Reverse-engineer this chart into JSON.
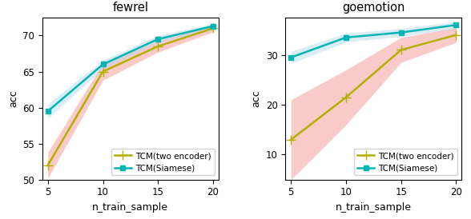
{
  "x": [
    5,
    10,
    15,
    20
  ],
  "fewrel": {
    "two_encoder_mean": [
      52.0,
      65.0,
      68.5,
      71.0
    ],
    "two_encoder_std": [
      1.8,
      1.2,
      0.8,
      0.5
    ],
    "siamese_mean": [
      59.5,
      66.0,
      69.5,
      71.3
    ],
    "siamese_std": [
      1.0,
      0.6,
      0.5,
      0.4
    ]
  },
  "goemotion": {
    "two_encoder_mean": [
      13.0,
      21.5,
      31.0,
      34.0
    ],
    "two_encoder_std": [
      8.0,
      5.5,
      2.5,
      1.5
    ],
    "siamese_mean": [
      29.5,
      33.5,
      34.5,
      36.0
    ],
    "siamese_std": [
      1.2,
      0.9,
      0.8,
      0.7
    ]
  },
  "color_two_encoder": "#b5b000",
  "color_siamese": "#00b5b5",
  "fill_color_two_encoder": "#f4a0a0",
  "fill_color_siamese": "#b0d8e8",
  "fill_alpha_two_encoder": 0.55,
  "fill_alpha_siamese": 0.45,
  "xlabel": "n_train_sample",
  "ylabel": "acc",
  "title_fewrel": "fewrel",
  "title_goemotion": "goemotion",
  "legend_two_encoder": "TCM(two encoder)",
  "legend_siamese": "TCM(Siamese)",
  "fewrel_ylim": [
    50,
    72.5
  ],
  "goemotion_ylim": [
    5,
    37.5
  ],
  "fewrel_yticks": [
    50,
    55,
    60,
    65,
    70
  ],
  "goemotion_yticks": [
    10,
    20,
    30
  ],
  "xticks": [
    5,
    10,
    15,
    20
  ],
  "marker_two_encoder": "+",
  "marker_siamese": "s",
  "linewidth": 1.8,
  "markersize_plus": 8,
  "markersize_sq": 5
}
